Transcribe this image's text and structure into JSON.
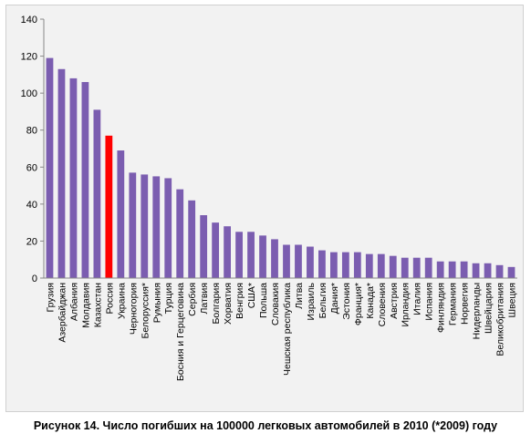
{
  "figure": {
    "caption": "Рисунок 14. Число погибших на 100000 легковых автомобилей в 2010 (*2009) году"
  },
  "chart_data": {
    "type": "bar",
    "title": "",
    "xlabel": "",
    "ylabel": "",
    "ylim": [
      0,
      140
    ],
    "yticks": [
      0,
      20,
      40,
      60,
      80,
      100,
      120,
      140
    ],
    "grid": false,
    "legend": "none",
    "colors": {
      "bar": "#7b5db0",
      "highlight": "#ff0000",
      "background": "#f2f2f2",
      "axis": "#888888"
    },
    "highlight_category": "Россия",
    "categories": [
      "Грузия",
      "Азербайджан",
      "Албания",
      "Молдавия",
      "Казахстан",
      "Россия",
      "Украина",
      "Черногория",
      "Белоруссия*",
      "Румыния",
      "Турция",
      "Босния и Герцеговина",
      "Сербия",
      "Латвия",
      "Болгария",
      "Хорватия",
      "Венгрия",
      "США*",
      "Польша",
      "Словакия",
      "Чешская республика",
      "Литва",
      "Израиль",
      "Бельгия",
      "Дания*",
      "Эстония",
      "Франция*",
      "Канада*",
      "Словения",
      "Австрия",
      "Ирландия",
      "Италия",
      "Испания",
      "Финляндия",
      "Германия",
      "Норвегия",
      "Нидерланды",
      "Швейцария",
      "Великобритания",
      "Швеция"
    ],
    "values": [
      119,
      113,
      108,
      106,
      91,
      77,
      69,
      57,
      56,
      55,
      54,
      48,
      42,
      34,
      30,
      28,
      25,
      25,
      23,
      21,
      18,
      18,
      17,
      15,
      14,
      14,
      14,
      13,
      13,
      12,
      11,
      11,
      11,
      9,
      9,
      9,
      8,
      8,
      7,
      6
    ]
  }
}
